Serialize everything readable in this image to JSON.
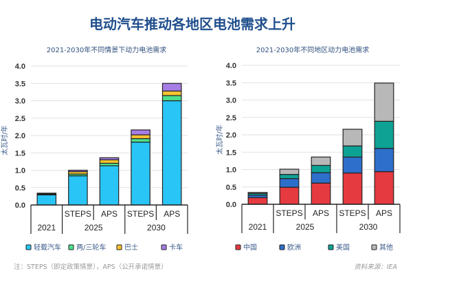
{
  "title": "电动汽车推动各地区电池需求上升",
  "note": "注：STEPS（即定政策情景），APS（公开承诺情景）",
  "source": "资料来源：IEA",
  "chart_data": [
    {
      "type": "bar",
      "stacked": true,
      "title": "2021-2030年不同情景下动力电池需求",
      "ylabel": "太瓦时/年",
      "ylim": [
        0,
        4.0
      ],
      "yticks": [
        "0.0",
        "0.5",
        "1.0",
        "1.5",
        "2.0",
        "2.5",
        "3.0",
        "3.5",
        "4.0"
      ],
      "grid": true,
      "legend": "bottom",
      "categories": [
        "2021",
        "STEPS",
        "APS",
        "STEPS",
        "APS"
      ],
      "groups": [
        {
          "label": "2021",
          "span": 1
        },
        {
          "label": "2025",
          "span": 2
        },
        {
          "label": "2030",
          "span": 2
        }
      ],
      "series": [
        {
          "name": "轻载汽车",
          "color": "#29c5f6",
          "values": [
            0.29,
            0.84,
            1.13,
            1.81,
            3.0
          ]
        },
        {
          "name": "两/三轮车",
          "color": "#4ee08a",
          "values": [
            0.01,
            0.05,
            0.07,
            0.1,
            0.15
          ]
        },
        {
          "name": "巴士",
          "color": "#f7c331",
          "values": [
            0.02,
            0.07,
            0.1,
            0.11,
            0.13
          ]
        },
        {
          "name": "卡车",
          "color": "#a77ee6",
          "values": [
            0.02,
            0.04,
            0.06,
            0.14,
            0.22
          ]
        }
      ]
    },
    {
      "type": "bar",
      "stacked": true,
      "title": "2021-2030年不同地区动力电池需求",
      "ylabel": "太瓦时/年",
      "ylim": [
        0,
        4.0
      ],
      "yticks": [
        "0.0",
        "0.5",
        "1.0",
        "1.5",
        "2.0",
        "2.5",
        "3.0",
        "3.5",
        "4.0"
      ],
      "grid": true,
      "legend": "bottom",
      "categories": [
        "2021",
        "STEPS",
        "APS",
        "STEPS",
        "APS"
      ],
      "groups": [
        {
          "label": "2021",
          "span": 1
        },
        {
          "label": "2025",
          "span": 2
        },
        {
          "label": "2030",
          "span": 2
        }
      ],
      "series": [
        {
          "name": "中国",
          "color": "#e53a40",
          "values": [
            0.19,
            0.49,
            0.61,
            0.9,
            0.94
          ]
        },
        {
          "name": "欧洲",
          "color": "#2e6fcb",
          "values": [
            0.07,
            0.25,
            0.3,
            0.46,
            0.67
          ]
        },
        {
          "name": "美国",
          "color": "#0ea294",
          "values": [
            0.05,
            0.12,
            0.21,
            0.32,
            0.78
          ]
        },
        {
          "name": "其他",
          "color": "#b8b8b8",
          "values": [
            0.03,
            0.15,
            0.24,
            0.48,
            1.1
          ]
        }
      ]
    }
  ]
}
